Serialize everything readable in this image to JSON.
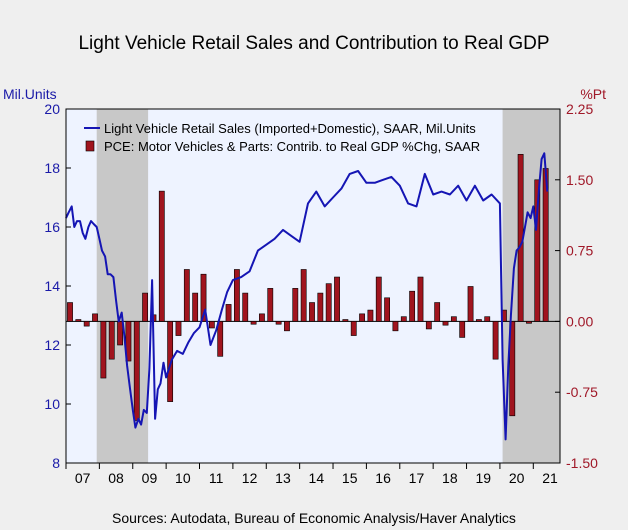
{
  "title": "Light Vehicle Retail Sales and Contribution to Real GDP",
  "left_unit": "Mil.Units",
  "right_unit": "%Pt",
  "source": "Sources:  Autodata, Bureau of Economic Analysis/Haver Analytics",
  "colors": {
    "line": "#1515b4",
    "bars": "#a0141e",
    "recession": "#c8c8c8",
    "plot_bg": "#eef3ff"
  },
  "chart_data": {
    "type": "bar+line",
    "x_axis": {
      "labels": [
        "07",
        "08",
        "09",
        "10",
        "11",
        "12",
        "13",
        "14",
        "15",
        "16",
        "17",
        "18",
        "19",
        "20",
        "21"
      ],
      "start": 2007.0,
      "end": 2021.8
    },
    "y_left": {
      "min": 8,
      "max": 20,
      "ticks": [
        "8",
        "10",
        "12",
        "14",
        "16",
        "18",
        "20"
      ]
    },
    "y_right": {
      "min": -1.5,
      "max": 2.25,
      "ticks": [
        "-1.50",
        "-0.75",
        "0.00",
        "0.75",
        "1.50",
        "2.25"
      ]
    },
    "recessions": [
      [
        2007.92,
        2009.46
      ],
      [
        2020.08,
        2021.8
      ]
    ],
    "legend": [
      "Light Vehicle Retail Sales (Imported+Domestic), SAAR, Mil.Units",
      "PCE: Motor Vehicles & Parts: Contrib. to Real GDP %Chg, SAAR"
    ],
    "series": [
      {
        "name": "Light Vehicle Retail Sales (Imported+Domestic), SAAR, Mil.Units",
        "axis": "left",
        "kind": "line",
        "x": [
          2007.0,
          2007.08,
          2007.17,
          2007.25,
          2007.33,
          2007.42,
          2007.5,
          2007.58,
          2007.67,
          2007.75,
          2007.83,
          2007.92,
          2008.0,
          2008.08,
          2008.17,
          2008.25,
          2008.33,
          2008.42,
          2008.5,
          2008.58,
          2008.67,
          2008.75,
          2008.83,
          2008.92,
          2009.0,
          2009.08,
          2009.17,
          2009.25,
          2009.33,
          2009.42,
          2009.5,
          2009.58,
          2009.67,
          2009.75,
          2009.83,
          2009.92,
          2010.0,
          2010.17,
          2010.33,
          2010.5,
          2010.67,
          2010.83,
          2011.0,
          2011.17,
          2011.33,
          2011.5,
          2011.67,
          2011.83,
          2012.0,
          2012.25,
          2012.5,
          2012.75,
          2013.0,
          2013.25,
          2013.5,
          2013.75,
          2014.0,
          2014.25,
          2014.5,
          2014.75,
          2015.0,
          2015.25,
          2015.5,
          2015.75,
          2016.0,
          2016.25,
          2016.5,
          2016.75,
          2017.0,
          2017.25,
          2017.5,
          2017.75,
          2018.0,
          2018.25,
          2018.5,
          2018.75,
          2019.0,
          2019.25,
          2019.5,
          2019.75,
          2020.0,
          2020.08,
          2020.17,
          2020.25,
          2020.33,
          2020.42,
          2020.5,
          2020.58,
          2020.67,
          2020.75,
          2020.83,
          2020.92,
          2021.0,
          2021.08,
          2021.17,
          2021.25,
          2021.33,
          2021.42
        ],
        "values": [
          16.3,
          16.5,
          16.7,
          16.0,
          16.2,
          16.2,
          15.8,
          15.6,
          16.0,
          16.2,
          16.1,
          16.0,
          15.6,
          15.2,
          15.0,
          14.4,
          14.4,
          14.3,
          13.5,
          12.8,
          13.1,
          12.3,
          11.3,
          10.5,
          9.8,
          9.2,
          9.5,
          9.3,
          9.8,
          9.7,
          11.2,
          14.2,
          9.5,
          10.5,
          10.7,
          11.4,
          10.9,
          11.5,
          11.8,
          11.7,
          12.1,
          12.4,
          12.6,
          13.2,
          12.0,
          12.5,
          13.2,
          13.8,
          14.2,
          14.3,
          14.5,
          15.2,
          15.4,
          15.6,
          15.9,
          15.7,
          15.5,
          16.8,
          17.2,
          16.7,
          17.0,
          17.3,
          17.8,
          17.9,
          17.5,
          17.5,
          17.6,
          17.7,
          17.4,
          16.8,
          16.7,
          17.8,
          17.1,
          17.2,
          17.1,
          17.4,
          16.9,
          17.4,
          16.9,
          17.1,
          16.8,
          11.5,
          8.8,
          11.3,
          13.0,
          14.6,
          15.2,
          15.3,
          15.5,
          16.0,
          16.5,
          16.3,
          16.7,
          15.9,
          17.3,
          18.3,
          18.5,
          17.2
        ]
      },
      {
        "name": "PCE: Motor Vehicles & Parts: Contrib. to Real GDP %Chg, SAAR",
        "axis": "right",
        "kind": "bar",
        "x": [
          2007.12,
          2007.37,
          2007.62,
          2007.87,
          2008.12,
          2008.37,
          2008.62,
          2008.87,
          2009.12,
          2009.37,
          2009.62,
          2009.87,
          2010.12,
          2010.37,
          2010.62,
          2010.87,
          2011.12,
          2011.37,
          2011.62,
          2011.87,
          2012.12,
          2012.37,
          2012.62,
          2012.87,
          2013.12,
          2013.37,
          2013.62,
          2013.87,
          2014.12,
          2014.37,
          2014.62,
          2014.87,
          2015.12,
          2015.37,
          2015.62,
          2015.87,
          2016.12,
          2016.37,
          2016.62,
          2016.87,
          2017.12,
          2017.37,
          2017.62,
          2017.87,
          2018.12,
          2018.37,
          2018.62,
          2018.87,
          2019.12,
          2019.37,
          2019.62,
          2019.87,
          2020.12,
          2020.37,
          2020.62,
          2020.87,
          2021.12,
          2021.37
        ],
        "values": [
          0.2,
          0.02,
          -0.05,
          0.08,
          -0.6,
          -0.4,
          -0.25,
          -0.42,
          -1.05,
          0.3,
          0.07,
          1.38,
          -0.85,
          -0.15,
          0.55,
          0.3,
          0.5,
          -0.07,
          -0.37,
          0.18,
          0.55,
          0.3,
          -0.03,
          0.08,
          0.35,
          -0.03,
          -0.1,
          0.35,
          0.55,
          0.2,
          0.3,
          0.4,
          0.47,
          0.02,
          -0.15,
          0.08,
          0.12,
          0.47,
          0.25,
          -0.1,
          0.05,
          0.32,
          0.47,
          -0.08,
          0.2,
          -0.04,
          0.05,
          -0.17,
          0.37,
          0.02,
          0.05,
          -0.4,
          0.12,
          -1.0,
          1.77,
          -0.02,
          1.5,
          1.62
        ]
      }
    ]
  }
}
